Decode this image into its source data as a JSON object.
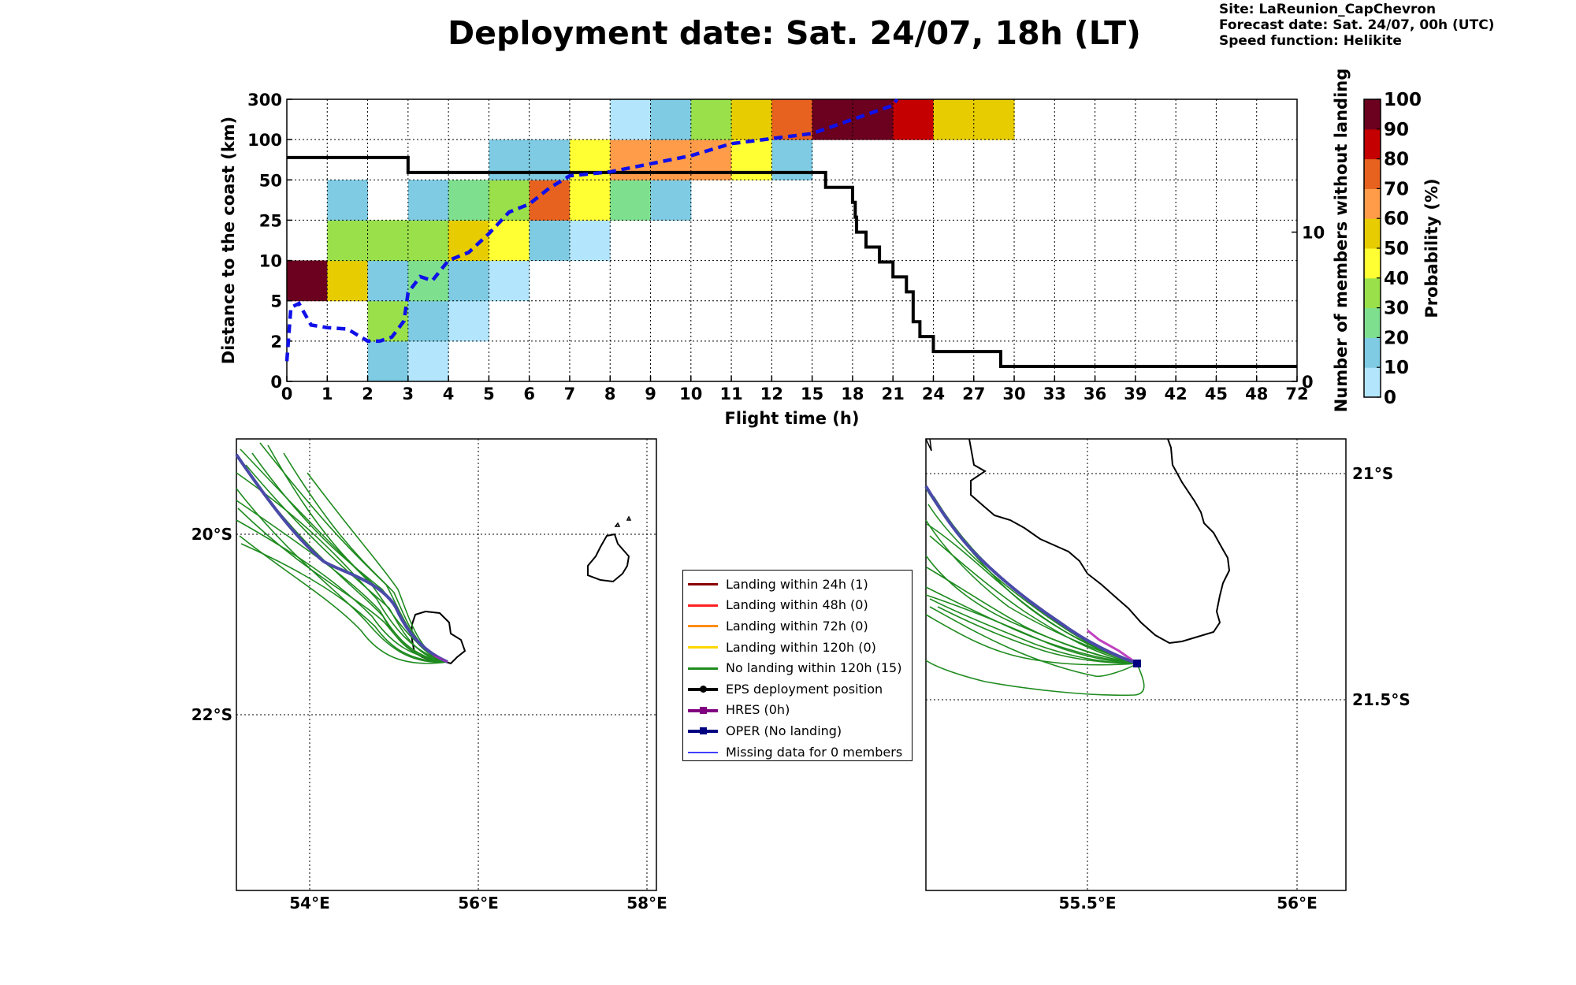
{
  "title": "Deployment date: Sat. 24/07, 18h (LT)",
  "meta": {
    "site": "Site: LaReunion_CapChevron",
    "forecast": "Forecast date: Sat. 24/07, 00h (UTC)",
    "speed": "Speed function: Helikite"
  },
  "chart_data": [
    {
      "type": "heatmap",
      "title": "Deployment date: Sat. 24/07, 18h (LT)",
      "xlabel": "Flight time (h)",
      "ylabel": "Distance to the coast (km)",
      "y2label": "Number of members without landing",
      "colorbar_label": "Probability (%)",
      "x_ticks": [
        "0",
        "1",
        "2",
        "3",
        "4",
        "5",
        "6",
        "7",
        "8",
        "9",
        "10",
        "11",
        "12",
        "15",
        "18",
        "21",
        "24",
        "27",
        "30",
        "33",
        "36",
        "39",
        "42",
        "45",
        "48",
        "72"
      ],
      "y_ticks": [
        "0",
        "2",
        "5",
        "10",
        "25",
        "50",
        "100",
        "300"
      ],
      "y2_ticks": [
        "0",
        "10"
      ],
      "y2lim": [
        0,
        18.9
      ],
      "colorbar_ticks": [
        "0",
        "10",
        "20",
        "30",
        "40",
        "50",
        "60",
        "70",
        "80",
        "90",
        "100"
      ],
      "colorbar_colors": [
        "#b3e5fc",
        "#7ecbe3",
        "#7ee08f",
        "#99e04a",
        "#ffff33",
        "#e6cc00",
        "#ff9c4a",
        "#e6621e",
        "#c40000",
        "#6b001f"
      ],
      "grid": true,
      "cells": [
        {
          "col": 0,
          "row": 2,
          "value": 95
        },
        {
          "col": 1,
          "row": 2,
          "value": 50
        },
        {
          "col": 1,
          "row": 3,
          "value": 30
        },
        {
          "col": 1,
          "row": 4,
          "value": 10
        },
        {
          "col": 2,
          "row": 0,
          "value": 10
        },
        {
          "col": 2,
          "row": 1,
          "value": 30
        },
        {
          "col": 2,
          "row": 2,
          "value": 10
        },
        {
          "col": 2,
          "row": 3,
          "value": 30
        },
        {
          "col": 3,
          "row": 0,
          "value": 5
        },
        {
          "col": 3,
          "row": 1,
          "value": 10
        },
        {
          "col": 3,
          "row": 2,
          "value": 20
        },
        {
          "col": 3,
          "row": 3,
          "value": 30
        },
        {
          "col": 3,
          "row": 4,
          "value": 10
        },
        {
          "col": 4,
          "row": 1,
          "value": 5
        },
        {
          "col": 4,
          "row": 2,
          "value": 10
        },
        {
          "col": 4,
          "row": 3,
          "value": 50
        },
        {
          "col": 4,
          "row": 4,
          "value": 20
        },
        {
          "col": 5,
          "row": 2,
          "value": 5
        },
        {
          "col": 5,
          "row": 3,
          "value": 40
        },
        {
          "col": 5,
          "row": 4,
          "value": 30
        },
        {
          "col": 5,
          "row": 5,
          "value": 10
        },
        {
          "col": 6,
          "row": 3,
          "value": 10
        },
        {
          "col": 6,
          "row": 4,
          "value": 70
        },
        {
          "col": 6,
          "row": 5,
          "value": 10
        },
        {
          "col": 7,
          "row": 3,
          "value": 5
        },
        {
          "col": 7,
          "row": 4,
          "value": 40
        },
        {
          "col": 7,
          "row": 5,
          "value": 40
        },
        {
          "col": 8,
          "row": 4,
          "value": 20
        },
        {
          "col": 8,
          "row": 5,
          "value": 60
        },
        {
          "col": 8,
          "row": 6,
          "value": 5
        },
        {
          "col": 9,
          "row": 4,
          "value": 10
        },
        {
          "col": 9,
          "row": 5,
          "value": 60
        },
        {
          "col": 9,
          "row": 6,
          "value": 10
        },
        {
          "col": 10,
          "row": 5,
          "value": 60
        },
        {
          "col": 10,
          "row": 6,
          "value": 30
        },
        {
          "col": 11,
          "row": 5,
          "value": 40
        },
        {
          "col": 11,
          "row": 6,
          "value": 50
        },
        {
          "col": 12,
          "row": 5,
          "value": 10
        },
        {
          "col": 12,
          "row": 6,
          "value": 70
        },
        {
          "col": 13,
          "row": 6,
          "value": 95
        },
        {
          "col": 14,
          "row": 6,
          "value": 95
        },
        {
          "col": 15,
          "row": 6,
          "value": 85
        },
        {
          "col": 16,
          "row": 6,
          "value": 50
        },
        {
          "col": 17,
          "row": 6,
          "value": 50
        }
      ],
      "members_without_landing": {
        "x": [
          "0",
          "3",
          "15.5",
          "16",
          "18",
          "18.2",
          "18.3",
          "19",
          "20",
          "21",
          "22",
          "22.5",
          "23",
          "24",
          "29",
          "72"
        ],
        "members": [
          15,
          14,
          14,
          13,
          12,
          11,
          10,
          9,
          8,
          7,
          6,
          4,
          3,
          2,
          1,
          1
        ]
      },
      "median_distance": {
        "x": [
          "0",
          "0.1",
          "0.3",
          "0.6",
          "1",
          "1.5",
          "2",
          "2.3",
          "2.6",
          "2.9",
          "3",
          "3.3",
          "3.6",
          "4",
          "4.5",
          "5",
          "5.5",
          "6",
          "6.5",
          "7",
          "8",
          "9",
          "10",
          "11",
          "12",
          "15",
          "18",
          "21",
          "21.3"
        ],
        "distance_km": [
          1,
          4.5,
          4.8,
          3.2,
          3,
          2.9,
          2,
          2,
          2.3,
          3.5,
          6,
          8,
          7.5,
          10,
          13,
          20,
          30,
          35,
          45,
          55,
          60,
          70,
          80,
          95,
          105,
          130,
          200,
          270,
          300
        ]
      }
    }
  ],
  "maps": {
    "left": {
      "lon_labels": [
        "54°E",
        "56°E",
        "58°E"
      ],
      "lat_labels": [
        "20°S",
        "22°S"
      ]
    },
    "right": {
      "lon_labels": [
        "55.5°E",
        "56°E"
      ],
      "lat_labels": [
        "21°S",
        "21.5°S"
      ]
    }
  },
  "legend": [
    {
      "label": "Landing within 24h (1)",
      "color": "#8b0000",
      "marker": "none"
    },
    {
      "label": "Landing within 48h (0)",
      "color": "#ff2020",
      "marker": "none"
    },
    {
      "label": "Landing within 72h (0)",
      "color": "#ff8c00",
      "marker": "none"
    },
    {
      "label": "Landing within 120h (0)",
      "color": "#ffd700",
      "marker": "none"
    },
    {
      "label": "No landing within 120h (15)",
      "color": "#1f8b1f",
      "marker": "none"
    },
    {
      "label": "EPS deployment position",
      "color": "#000000",
      "marker": "dot"
    },
    {
      "label": "HRES (0h)",
      "color": "#800080",
      "marker": "square"
    },
    {
      "label": "OPER (No landing)",
      "color": "#000080",
      "marker": "square"
    },
    {
      "label": "Missing data for 0 members",
      "color": "#4040ff",
      "marker": "thin"
    }
  ]
}
